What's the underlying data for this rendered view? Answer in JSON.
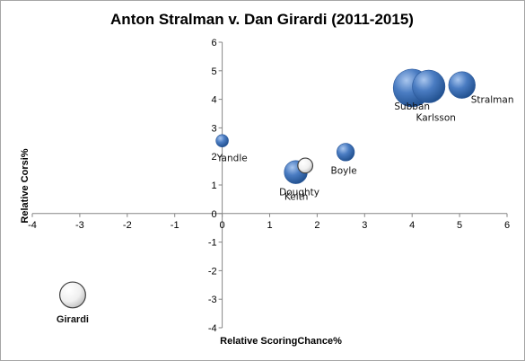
{
  "chart_data": {
    "type": "bubble",
    "title": "Anton Stralman v. Dan Girardi (2011-2015)",
    "xlabel": "Relative ScoringChance%",
    "ylabel": "Relative Corsi%",
    "xlim": [
      -4,
      6
    ],
    "ylim": [
      -4,
      6
    ],
    "x_ticks": [
      "-4",
      "-3",
      "-2",
      "-1",
      "0",
      "1",
      "2",
      "3",
      "4",
      "5",
      "6"
    ],
    "y_ticks": [
      "-4",
      "-3",
      "-2",
      "-1",
      "0",
      "1",
      "2",
      "3",
      "4",
      "5",
      "6"
    ],
    "grid": false,
    "legend": "none",
    "colors": {
      "blue": "#4a7cc2",
      "blue_dark": "#1f4e8c",
      "white_outline": "#7f7f7f"
    },
    "points": [
      {
        "label": "Subban",
        "x": 4.0,
        "y": 4.4,
        "size": 32,
        "color": "blue",
        "label_pos": "below"
      },
      {
        "label": "Karlsson",
        "x": 4.35,
        "y": 4.45,
        "size": 24,
        "color": "blue",
        "label_pos": "below-right"
      },
      {
        "label": "Stralman",
        "x": 5.05,
        "y": 4.5,
        "size": 16,
        "color": "blue",
        "label_pos": "below-right"
      },
      {
        "label": "Boyle",
        "x": 2.6,
        "y": 2.15,
        "size": 7,
        "color": "blue",
        "label_pos": "below"
      },
      {
        "label": "Yandle",
        "x": 0.0,
        "y": 2.55,
        "size": 3.5,
        "color": "blue",
        "label_pos": "below-right"
      },
      {
        "label": "Doughty",
        "x": 1.55,
        "y": 1.45,
        "size": 12,
        "color": "blue",
        "label_pos": "below"
      },
      {
        "label": "Keith",
        "x": 1.75,
        "y": 1.68,
        "size": 5,
        "color": "white",
        "label_pos": "below-left"
      },
      {
        "label": "Girardi",
        "x": -3.15,
        "y": -2.85,
        "size": 15,
        "color": "white",
        "label_pos": "below",
        "label_bold": true
      }
    ]
  }
}
